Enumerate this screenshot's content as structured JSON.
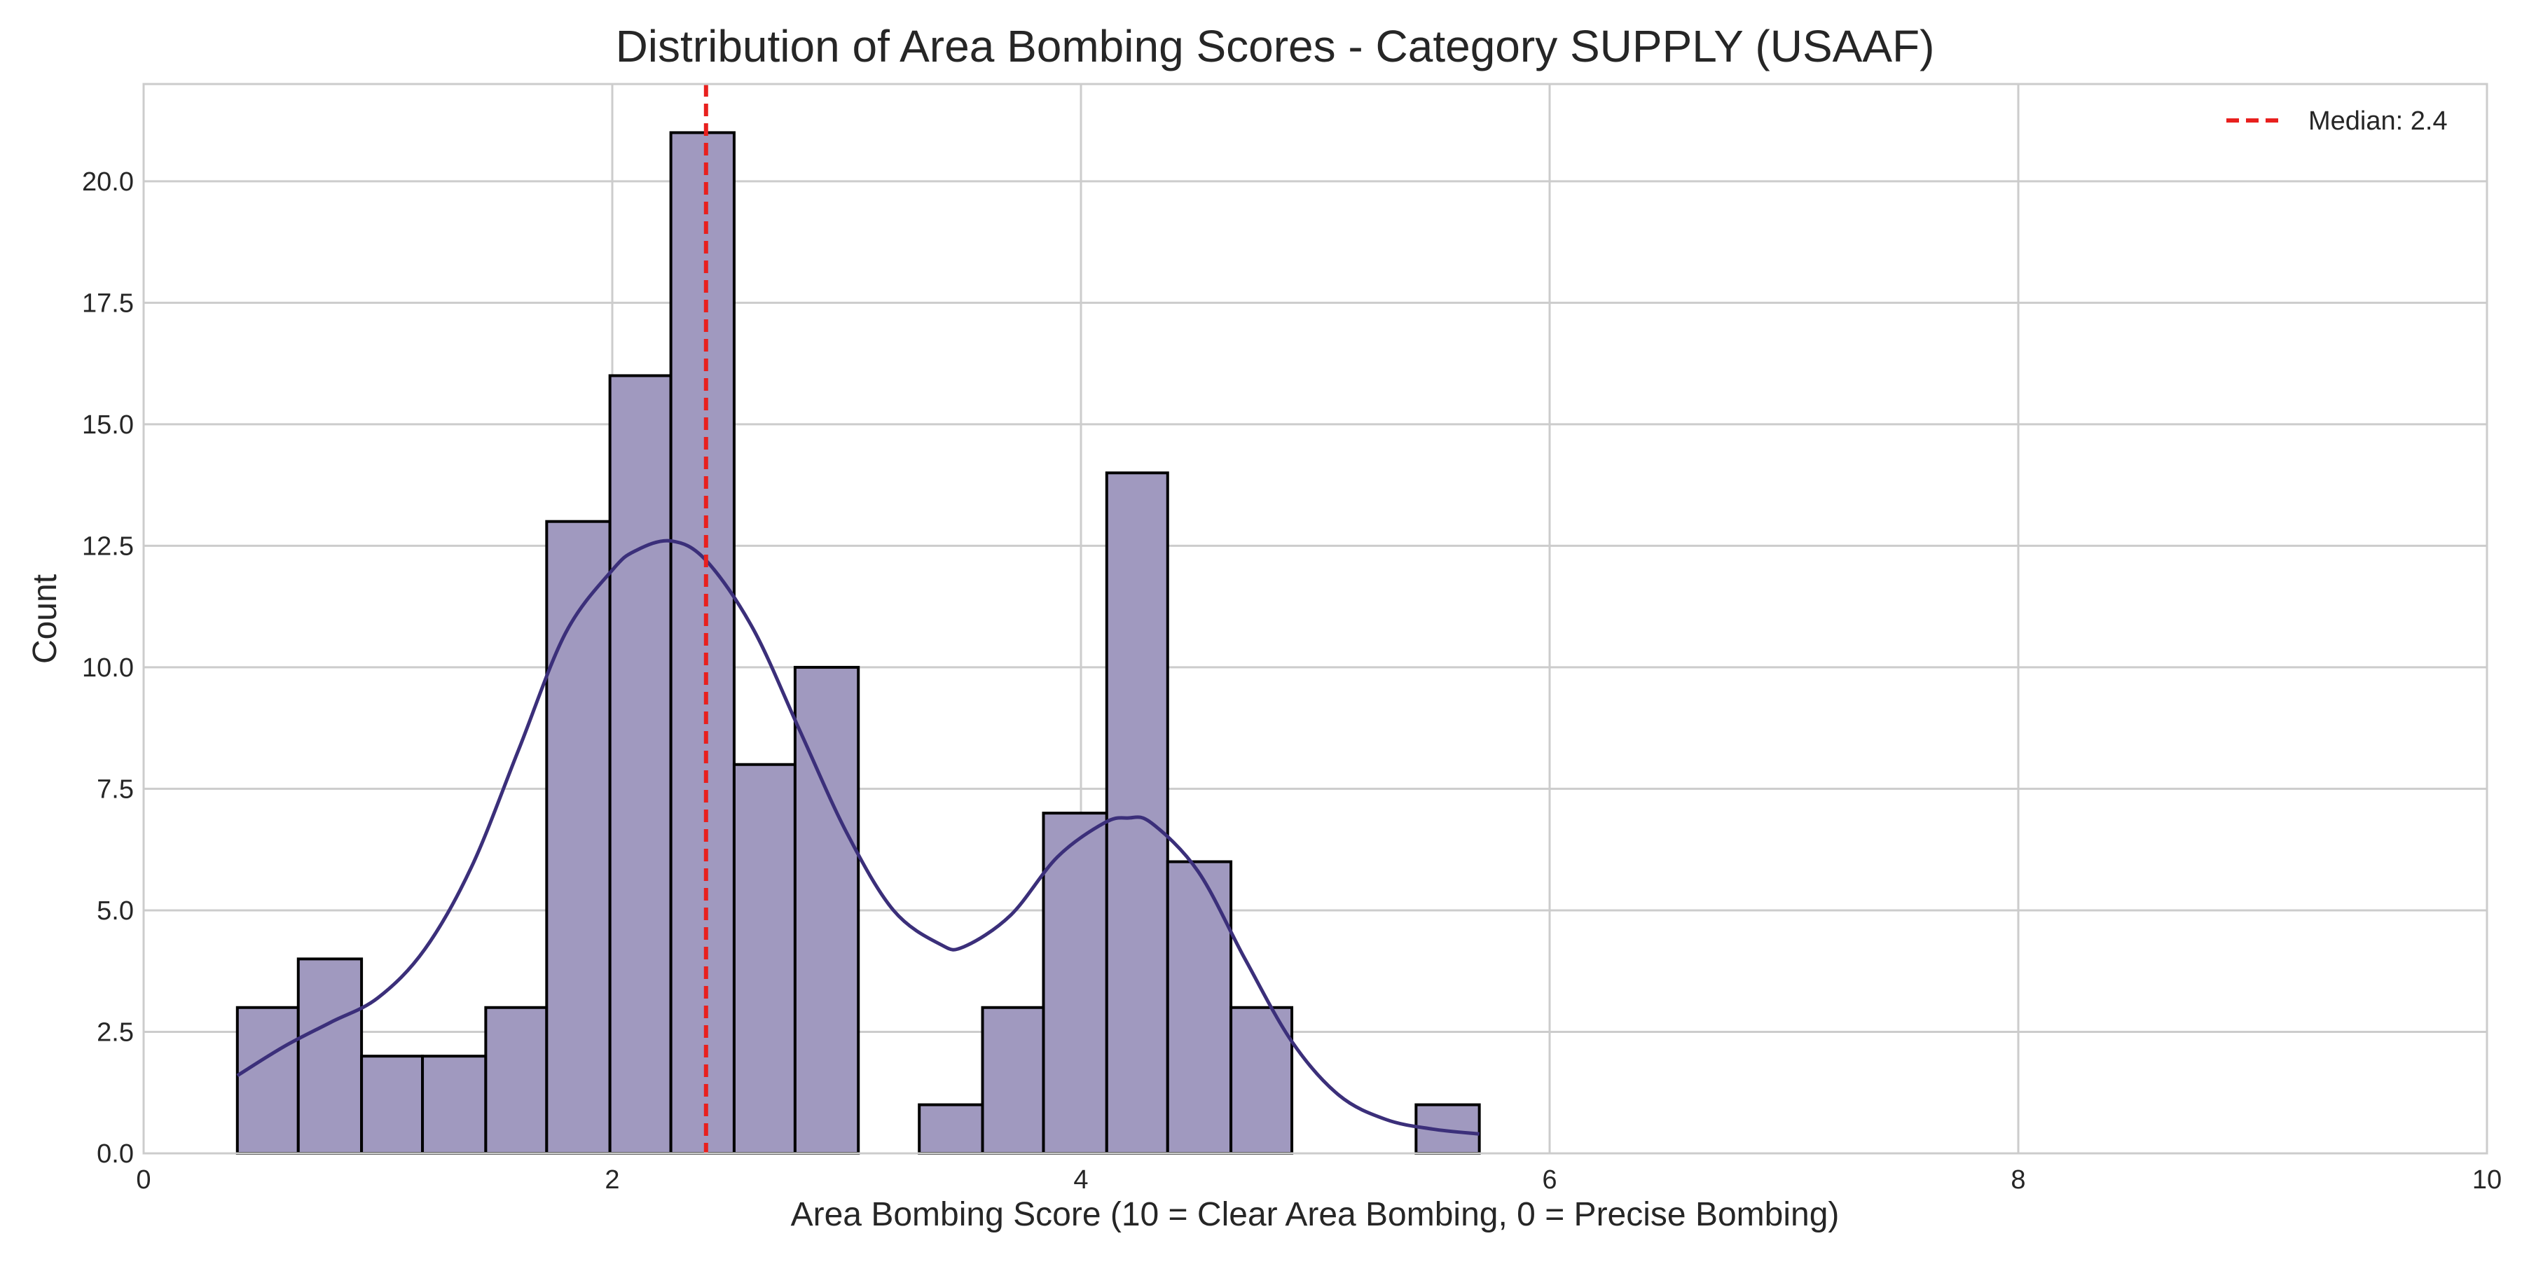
{
  "chart_data": {
    "type": "bar",
    "title": "Distribution of Area Bombing Scores - Category SUPPLY (USAAF)",
    "xlabel": "Area Bombing Score (10 = Clear Area Bombing, 0 = Precise Bombing)",
    "ylabel": "Count",
    "xlim": [
      0,
      10
    ],
    "ylim": [
      0,
      22
    ],
    "x_ticks": [
      0,
      2,
      4,
      6,
      8,
      10
    ],
    "x_tick_labels": [
      "0",
      "2",
      "4",
      "6",
      "8",
      "10"
    ],
    "y_ticks": [
      0,
      2.5,
      5,
      7.5,
      10,
      12.5,
      15,
      17.5,
      20
    ],
    "y_tick_labels": [
      "0.0",
      "2.5",
      "5.0",
      "7.5",
      "10.0",
      "12.5",
      "15.0",
      "17.5",
      "20.0"
    ],
    "grid": true,
    "legend_position": "top-right",
    "bins": [
      {
        "start": 0.4,
        "end": 0.66,
        "count": 3
      },
      {
        "start": 0.66,
        "end": 0.93,
        "count": 4
      },
      {
        "start": 0.93,
        "end": 1.19,
        "count": 2
      },
      {
        "start": 1.19,
        "end": 1.46,
        "count": 2
      },
      {
        "start": 1.46,
        "end": 1.72,
        "count": 3
      },
      {
        "start": 1.72,
        "end": 1.99,
        "count": 13
      },
      {
        "start": 1.99,
        "end": 2.25,
        "count": 16
      },
      {
        "start": 2.25,
        "end": 2.52,
        "count": 21
      },
      {
        "start": 2.52,
        "end": 2.78,
        "count": 8
      },
      {
        "start": 2.78,
        "end": 3.05,
        "count": 10
      },
      {
        "start": 3.05,
        "end": 3.31,
        "count": 0
      },
      {
        "start": 3.31,
        "end": 3.58,
        "count": 1
      },
      {
        "start": 3.58,
        "end": 3.84,
        "count": 3
      },
      {
        "start": 3.84,
        "end": 4.11,
        "count": 7
      },
      {
        "start": 4.11,
        "end": 4.37,
        "count": 14
      },
      {
        "start": 4.37,
        "end": 4.64,
        "count": 6
      },
      {
        "start": 4.64,
        "end": 4.9,
        "count": 3
      },
      {
        "start": 4.9,
        "end": 5.17,
        "count": 0
      },
      {
        "start": 5.17,
        "end": 5.43,
        "count": 0
      },
      {
        "start": 5.43,
        "end": 5.7,
        "count": 1
      }
    ],
    "kde": {
      "x": [
        0.4,
        0.6,
        0.8,
        1.0,
        1.2,
        1.4,
        1.6,
        1.8,
        2.0,
        2.1,
        2.25,
        2.4,
        2.6,
        2.8,
        3.0,
        3.2,
        3.4,
        3.5,
        3.7,
        3.9,
        4.1,
        4.2,
        4.3,
        4.5,
        4.7,
        4.9,
        5.1,
        5.3,
        5.5,
        5.7
      ],
      "y": [
        1.6,
        2.2,
        2.7,
        3.2,
        4.2,
        5.9,
        8.3,
        10.7,
        12.0,
        12.4,
        12.6,
        12.2,
        10.8,
        8.7,
        6.6,
        5.0,
        4.3,
        4.25,
        4.9,
        6.1,
        6.8,
        6.9,
        6.8,
        5.8,
        4.0,
        2.3,
        1.2,
        0.7,
        0.5,
        0.4
      ]
    },
    "median": {
      "value": 2.4,
      "label": "Median: 2.4"
    },
    "colors": {
      "bar_fill": "#a099bf",
      "bar_edge": "#000000",
      "kde_line": "#3b2f7a",
      "median_line": "#e8201e",
      "grid": "#cccccc",
      "axis_frame": "#cccccc"
    }
  }
}
